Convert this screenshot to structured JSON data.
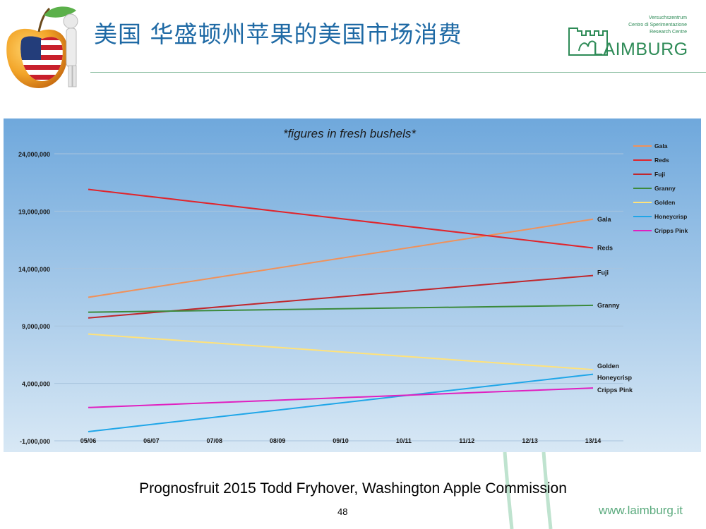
{
  "header": {
    "title": "美国 华盛顿州苹果的美国市场消费"
  },
  "brand": {
    "tagline": [
      "Versuchszentrum",
      "Centro di Sperimentazione",
      "Research Centre"
    ],
    "name": "LAIMBURG",
    "url": "www.laimburg.it"
  },
  "footer": {
    "source": "Prognosfruit 2015 Todd Fryhover, Washington Apple Commission",
    "page_number": "48"
  },
  "colors": {
    "header_title": "#1f6aa5",
    "brand_green": "#2e8b57",
    "chart_bg_top": "#6fa8dc",
    "chart_bg_bottom": "#d8e8f5"
  },
  "chart_data": {
    "type": "line",
    "title": "*figures in fresh bushels*",
    "x": [
      "05/06",
      "06/07",
      "07/08",
      "08/09",
      "09/10",
      "10/11",
      "11/12",
      "12/13",
      "13/14"
    ],
    "ylim": [
      -1000000,
      24000000
    ],
    "yticks": [
      -1000000,
      4000000,
      9000000,
      14000000,
      19000000,
      24000000
    ],
    "ytick_labels": [
      "-1,000,000",
      "4,000,000",
      "9,000,000",
      "14,000,000",
      "19,000,000",
      "24,000,000"
    ],
    "grid": true,
    "legend_position": "top-right",
    "series": [
      {
        "name": "Gala",
        "color": "#f0915a",
        "start": 11500000,
        "end": 18300000
      },
      {
        "name": "Reds",
        "color": "#e0252c",
        "start": 20900000,
        "end": 15800000
      },
      {
        "name": "Fuji",
        "color": "#c0272d",
        "start": 9700000,
        "end": 13400000
      },
      {
        "name": "Granny",
        "color": "#3c8a3c",
        "start": 10200000,
        "end": 10800000
      },
      {
        "name": "Golden",
        "color": "#ffe27a",
        "start": 8300000,
        "end": 5200000
      },
      {
        "name": "Honeycrisp",
        "color": "#1fa6e8",
        "start": -200000,
        "end": 4800000
      },
      {
        "name": "Cripps Pink",
        "color": "#e020c0",
        "start": 1900000,
        "end": 3600000
      }
    ],
    "end_labels": [
      "Gala",
      "Reds",
      "Fuji",
      "Granny",
      "Golden",
      "Honeycrisp",
      "Cripps Pink"
    ]
  }
}
